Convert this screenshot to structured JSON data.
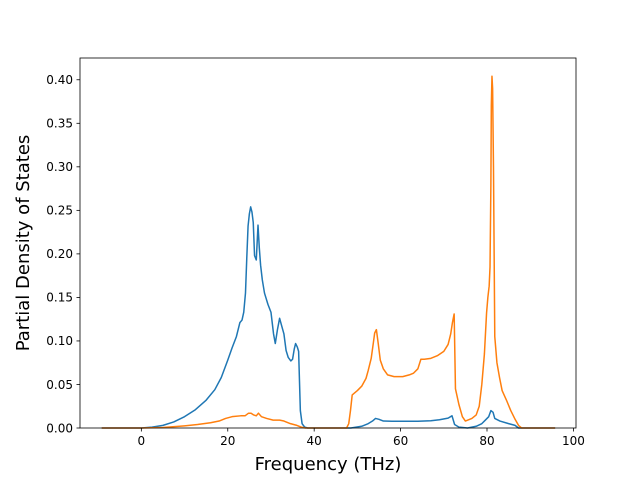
{
  "chart_data": {
    "type": "line",
    "title": "",
    "xlabel": "Frequency (THz)",
    "ylabel": "Partial Density of States",
    "xlim": [
      -14.2,
      100.6
    ],
    "ylim": [
      0.0,
      0.425
    ],
    "x_ticks": [
      {
        "value": 0,
        "label": "0"
      },
      {
        "value": 20,
        "label": "20"
      },
      {
        "value": 40,
        "label": "40"
      },
      {
        "value": 60,
        "label": "60"
      },
      {
        "value": 80,
        "label": "80"
      },
      {
        "value": 100,
        "label": "100"
      }
    ],
    "y_ticks": [
      {
        "value": 0.0,
        "label": "0.00"
      },
      {
        "value": 0.05,
        "label": "0.05"
      },
      {
        "value": 0.1,
        "label": "0.10"
      },
      {
        "value": 0.15,
        "label": "0.15"
      },
      {
        "value": 0.2,
        "label": "0.20"
      },
      {
        "value": 0.25,
        "label": "0.25"
      },
      {
        "value": 0.3,
        "label": "0.30"
      },
      {
        "value": 0.35,
        "label": "0.35"
      },
      {
        "value": 0.4,
        "label": "0.40"
      }
    ],
    "grid": false,
    "legend": "none",
    "series": [
      {
        "color": "#1f77b4",
        "points": [
          [
            -9.0,
            0.0
          ],
          [
            0.0,
            0.0
          ],
          [
            2.5,
            0.001
          ],
          [
            5.0,
            0.003
          ],
          [
            7.5,
            0.007
          ],
          [
            10.0,
            0.013
          ],
          [
            12.5,
            0.021
          ],
          [
            15.0,
            0.032
          ],
          [
            17.0,
            0.044
          ],
          [
            18.5,
            0.058
          ],
          [
            20.0,
            0.078
          ],
          [
            21.0,
            0.092
          ],
          [
            22.0,
            0.105
          ],
          [
            22.8,
            0.121
          ],
          [
            23.3,
            0.124
          ],
          [
            23.7,
            0.133
          ],
          [
            24.1,
            0.155
          ],
          [
            24.4,
            0.195
          ],
          [
            24.7,
            0.232
          ],
          [
            25.0,
            0.246
          ],
          [
            25.3,
            0.254
          ],
          [
            25.6,
            0.248
          ],
          [
            25.9,
            0.236
          ],
          [
            26.2,
            0.198
          ],
          [
            26.6,
            0.193
          ],
          [
            27.0,
            0.233
          ],
          [
            27.3,
            0.207
          ],
          [
            27.6,
            0.187
          ],
          [
            28.0,
            0.17
          ],
          [
            28.5,
            0.155
          ],
          [
            29.3,
            0.142
          ],
          [
            30.0,
            0.133
          ],
          [
            30.6,
            0.108
          ],
          [
            31.0,
            0.097
          ],
          [
            31.5,
            0.113
          ],
          [
            32.0,
            0.126
          ],
          [
            32.5,
            0.117
          ],
          [
            33.0,
            0.108
          ],
          [
            33.5,
            0.089
          ],
          [
            34.0,
            0.081
          ],
          [
            34.6,
            0.077
          ],
          [
            35.0,
            0.079
          ],
          [
            35.4,
            0.091
          ],
          [
            35.7,
            0.097
          ],
          [
            36.1,
            0.093
          ],
          [
            36.4,
            0.088
          ],
          [
            36.8,
            0.02
          ],
          [
            37.2,
            0.005
          ],
          [
            37.8,
            0.001
          ],
          [
            38.5,
            0.0
          ],
          [
            48.5,
            0.0
          ],
          [
            51.0,
            0.002
          ],
          [
            52.5,
            0.005
          ],
          [
            53.5,
            0.008
          ],
          [
            54.2,
            0.011
          ],
          [
            55.0,
            0.01
          ],
          [
            56.0,
            0.008
          ],
          [
            58.0,
            0.0078
          ],
          [
            61.0,
            0.0078
          ],
          [
            64.0,
            0.0077
          ],
          [
            67.0,
            0.0083
          ],
          [
            69.0,
            0.0095
          ],
          [
            71.0,
            0.0113
          ],
          [
            71.9,
            0.014
          ],
          [
            72.5,
            0.004
          ],
          [
            73.5,
            0.001
          ],
          [
            75.5,
            0.0
          ],
          [
            77.5,
            0.002
          ],
          [
            78.8,
            0.005
          ],
          [
            79.6,
            0.009
          ],
          [
            80.4,
            0.013
          ],
          [
            80.9,
            0.02
          ],
          [
            81.4,
            0.018
          ],
          [
            81.8,
            0.011
          ],
          [
            83.0,
            0.008
          ],
          [
            85.0,
            0.005
          ],
          [
            86.5,
            0.003
          ],
          [
            87.3,
            0.0
          ],
          [
            95.6,
            0.0
          ]
        ]
      },
      {
        "color": "#ff7f0e",
        "points": [
          [
            -9.0,
            0.0
          ],
          [
            0.0,
            0.0
          ],
          [
            5.0,
            0.0005
          ],
          [
            10.0,
            0.0025
          ],
          [
            13.0,
            0.004
          ],
          [
            16.0,
            0.006
          ],
          [
            18.0,
            0.008
          ],
          [
            19.5,
            0.011
          ],
          [
            21.0,
            0.013
          ],
          [
            23.0,
            0.014
          ],
          [
            24.0,
            0.014
          ],
          [
            24.8,
            0.017
          ],
          [
            25.4,
            0.017
          ],
          [
            26.0,
            0.015
          ],
          [
            26.6,
            0.014
          ],
          [
            27.1,
            0.017
          ],
          [
            27.8,
            0.013
          ],
          [
            29.0,
            0.011
          ],
          [
            30.5,
            0.009
          ],
          [
            32.0,
            0.009
          ],
          [
            33.0,
            0.008
          ],
          [
            34.5,
            0.005
          ],
          [
            36.0,
            0.003
          ],
          [
            37.0,
            0.001
          ],
          [
            38.0,
            0.0
          ],
          [
            47.5,
            0.0
          ],
          [
            48.0,
            0.005
          ],
          [
            48.4,
            0.02
          ],
          [
            48.8,
            0.038
          ],
          [
            50.0,
            0.043
          ],
          [
            51.0,
            0.048
          ],
          [
            52.0,
            0.057
          ],
          [
            52.5,
            0.066
          ],
          [
            53.2,
            0.08
          ],
          [
            53.7,
            0.098
          ],
          [
            54.0,
            0.109
          ],
          [
            54.4,
            0.113
          ],
          [
            54.8,
            0.098
          ],
          [
            55.3,
            0.078
          ],
          [
            56.0,
            0.068
          ],
          [
            57.0,
            0.061
          ],
          [
            58.5,
            0.059
          ],
          [
            60.5,
            0.059
          ],
          [
            62.0,
            0.061
          ],
          [
            63.0,
            0.063
          ],
          [
            64.0,
            0.068
          ],
          [
            64.7,
            0.079
          ],
          [
            65.5,
            0.079
          ],
          [
            67.0,
            0.08
          ],
          [
            68.5,
            0.083
          ],
          [
            70.0,
            0.088
          ],
          [
            71.0,
            0.096
          ],
          [
            71.6,
            0.108
          ],
          [
            72.0,
            0.121
          ],
          [
            72.4,
            0.131
          ],
          [
            72.7,
            0.045
          ],
          [
            73.5,
            0.027
          ],
          [
            74.3,
            0.013
          ],
          [
            75.0,
            0.008
          ],
          [
            76.5,
            0.011
          ],
          [
            77.5,
            0.015
          ],
          [
            78.2,
            0.025
          ],
          [
            78.8,
            0.05
          ],
          [
            79.4,
            0.085
          ],
          [
            79.9,
            0.132
          ],
          [
            80.2,
            0.15
          ],
          [
            80.5,
            0.163
          ],
          [
            80.7,
            0.185
          ],
          [
            80.9,
            0.28
          ],
          [
            81.0,
            0.37
          ],
          [
            81.15,
            0.404
          ],
          [
            81.3,
            0.39
          ],
          [
            81.5,
            0.3
          ],
          [
            81.8,
            0.105
          ],
          [
            82.3,
            0.075
          ],
          [
            82.9,
            0.058
          ],
          [
            83.5,
            0.043
          ],
          [
            84.5,
            0.032
          ],
          [
            85.5,
            0.02
          ],
          [
            86.5,
            0.01
          ],
          [
            87.3,
            0.003
          ],
          [
            88.0,
            0.0
          ],
          [
            95.6,
            0.0
          ]
        ]
      }
    ]
  }
}
